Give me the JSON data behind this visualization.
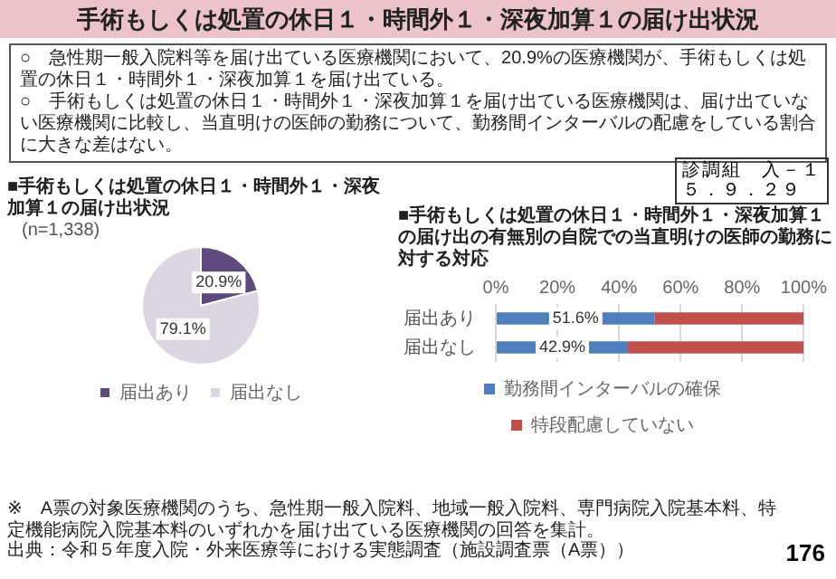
{
  "chart_data": [
    {
      "type": "other",
      "title": "手術もしくは処置の休日１・時間外１・深夜加算１の届け出状況",
      "annotations": [
        "○　急性期一般入院料等を届け出ている医療機関において、20.9%の医療機関が、手術もしくは処置の休日１・時間外１・深夜加算１を届け出ている。",
        "○　手術もしくは処置の休日１・時間外１・深夜加算１を届け出ている医療機関は、届け出ていない医療機関に比較し、当直明けの医師の勤務について、勤務間インターバルの配慮をしている割合に大きな差はない。",
        "診調組　入－１",
        "５．９．２９",
        "※　A票の対象医療機関のうち、急性期一般入院料、地域一般入院料、専門病院入院基本料、特定機能病院入院基本料のいずれかを届け出ている医療機関の回答を集計。",
        "出典：令和５年度入院・外来医療等における実態調査（施設調査票（A票））",
        "176"
      ]
    },
    {
      "type": "pie",
      "title": "■手術もしくは処置の休日１・時間外１・深夜加算１の届け出状況",
      "subtitle": "(n=1,338)",
      "categories": [
        "届出あり",
        "届出なし"
      ],
      "values": [
        20.9,
        79.1
      ],
      "colors": [
        "#5e4a7c",
        "#dcd6e3"
      ],
      "value_labels": [
        "20.9%",
        "79.1%"
      ],
      "legend": "bottom"
    },
    {
      "type": "bar",
      "orientation": "horizontal",
      "stacked": true,
      "title": "■手術もしくは処置の休日１・時間外１・深夜加算１の届け出の有無別の自院での当直明けの医師の勤務に対する対応",
      "categories": [
        "届出あり",
        "届出なし"
      ],
      "xlim": [
        0,
        100
      ],
      "xticks": [
        {
          "value": 0,
          "label": "0%"
        },
        {
          "value": 20,
          "label": "20%"
        },
        {
          "value": 40,
          "label": "40%"
        },
        {
          "value": 60,
          "label": "60%"
        },
        {
          "value": 80,
          "label": "80%"
        },
        {
          "value": 100,
          "label": "100%"
        }
      ],
      "grid": "x",
      "legend": "bottom",
      "series": [
        {
          "name": "勤務間インターバルの確保",
          "color": "#4f7fbd",
          "values": [
            51.6,
            42.9
          ],
          "value_labels": [
            "51.6%",
            "42.9%"
          ]
        },
        {
          "name": "特段配慮していない",
          "color": "#c0504d",
          "values": [
            48.4,
            57.1
          ]
        }
      ]
    }
  ]
}
